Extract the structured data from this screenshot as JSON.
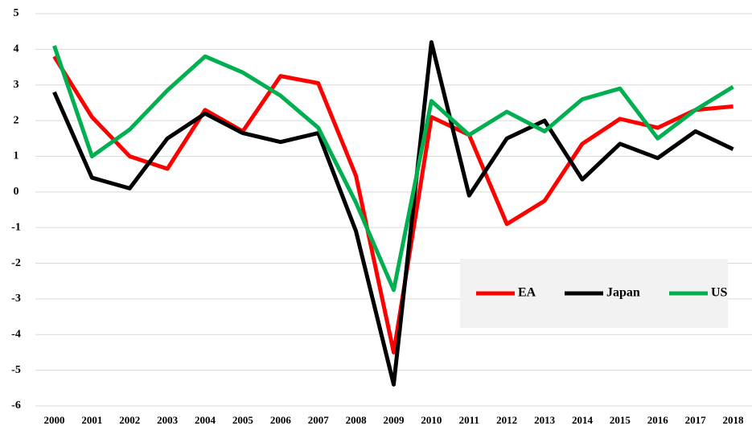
{
  "chart_data": {
    "type": "line",
    "categories": [
      "2000",
      "2001",
      "2002",
      "2003",
      "2004",
      "2005",
      "2006",
      "2007",
      "2008",
      "2009",
      "2010",
      "2011",
      "2012",
      "2013",
      "2014",
      "2015",
      "2016",
      "2017",
      "2018"
    ],
    "series": [
      {
        "name": "EA",
        "color": "#ff0000",
        "values": [
          3.8,
          2.1,
          1.0,
          0.65,
          2.3,
          1.7,
          3.25,
          3.05,
          0.45,
          -4.5,
          2.1,
          1.6,
          -0.9,
          -0.25,
          1.35,
          2.05,
          1.8,
          2.3,
          2.4
        ]
      },
      {
        "name": "Japan",
        "color": "#000000",
        "values": [
          2.8,
          0.4,
          0.1,
          1.5,
          2.2,
          1.65,
          1.4,
          1.65,
          -1.1,
          -5.4,
          4.2,
          -0.1,
          1.5,
          2.0,
          0.35,
          1.35,
          0.95,
          1.7,
          1.2
        ]
      },
      {
        "name": "US",
        "color": "#00b050",
        "values": [
          4.1,
          1.0,
          1.75,
          2.85,
          3.8,
          3.35,
          2.7,
          1.8,
          -0.3,
          -2.75,
          2.55,
          1.6,
          2.25,
          1.7,
          2.6,
          2.9,
          1.5,
          2.3,
          2.95
        ]
      }
    ],
    "ylim": [
      -6,
      5
    ],
    "yticks": [
      -6,
      -5,
      -4,
      -3,
      -2,
      -1,
      0,
      1,
      2,
      3,
      4,
      5
    ],
    "grid": true,
    "legend": "lower right"
  }
}
